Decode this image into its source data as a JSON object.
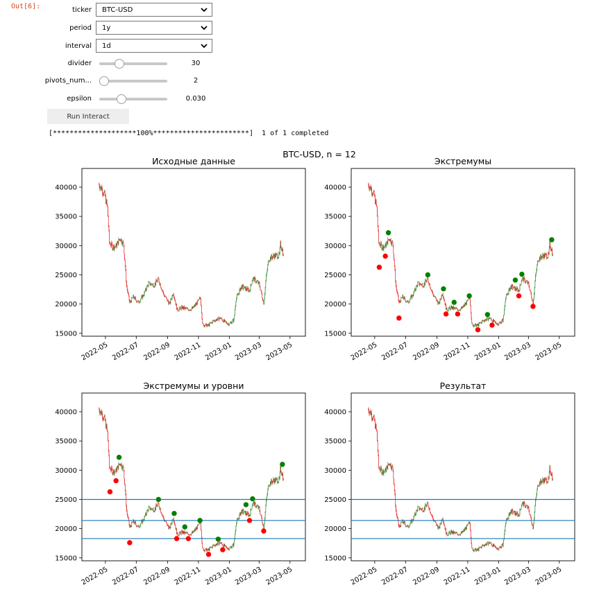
{
  "cell": {
    "prompt": "Out[6]:"
  },
  "widgets": {
    "ticker": {
      "label": "ticker",
      "value": "BTC-USD"
    },
    "period": {
      "label": "period",
      "value": "1y"
    },
    "interval": {
      "label": "interval",
      "value": "1d"
    },
    "divider": {
      "label": "divider",
      "value": "30",
      "fraction": 0.26
    },
    "pivots": {
      "label": "pivots_num...",
      "value": "2",
      "fraction": 0.0
    },
    "epsilon": {
      "label": "epsilon",
      "value": "0.030",
      "fraction": 0.29
    },
    "run_button": "Run Interact"
  },
  "progress": {
    "text": "[********************100%***********************]  1 of 1 completed"
  },
  "chart_data": {
    "type": "candlestick",
    "suptitle": "BTC-USD, n = 12",
    "x_ticks": [
      "2022-05",
      "2022-07",
      "2022-09",
      "2022-11",
      "2023-01",
      "2023-03",
      "2023-05"
    ],
    "y_ticks": [
      15000,
      20000,
      25000,
      30000,
      35000,
      40000
    ],
    "ylim": [
      14500,
      43200
    ],
    "close_path": [
      [
        "2022-04-18",
        40500
      ],
      [
        "2022-04-24",
        39700
      ],
      [
        "2022-04-30",
        38500
      ],
      [
        "2022-05-05",
        36500
      ],
      [
        "2022-05-09",
        30500
      ],
      [
        "2022-05-15",
        29800
      ],
      [
        "2022-05-22",
        29900
      ],
      [
        "2022-05-30",
        31300
      ],
      [
        "2022-06-06",
        30200
      ],
      [
        "2022-06-12",
        23000
      ],
      [
        "2022-06-18",
        20200
      ],
      [
        "2022-06-25",
        21200
      ],
      [
        "2022-07-05",
        20300
      ],
      [
        "2022-07-15",
        21500
      ],
      [
        "2022-07-25",
        23500
      ],
      [
        "2022-08-05",
        23300
      ],
      [
        "2022-08-14",
        24200
      ],
      [
        "2022-08-25",
        21500
      ],
      [
        "2022-09-05",
        20000
      ],
      [
        "2022-09-12",
        22000
      ],
      [
        "2022-09-20",
        19000
      ],
      [
        "2022-09-30",
        19400
      ],
      [
        "2022-10-10",
        19100
      ],
      [
        "2022-10-20",
        19200
      ],
      [
        "2022-11-01",
        20500
      ],
      [
        "2022-11-05",
        21200
      ],
      [
        "2022-11-09",
        16500
      ],
      [
        "2022-11-20",
        16300
      ],
      [
        "2022-11-30",
        17100
      ],
      [
        "2022-12-14",
        17600
      ],
      [
        "2022-12-25",
        16800
      ],
      [
        "2023-01-01",
        16600
      ],
      [
        "2023-01-10",
        17300
      ],
      [
        "2023-01-14",
        20800
      ],
      [
        "2023-01-25",
        23000
      ],
      [
        "2023-02-10",
        22300
      ],
      [
        "2023-02-16",
        24400
      ],
      [
        "2023-02-22",
        24000
      ],
      [
        "2023-03-01",
        23400
      ],
      [
        "2023-03-10",
        20200
      ],
      [
        "2023-03-15",
        24700
      ],
      [
        "2023-03-20",
        27700
      ],
      [
        "2023-03-31",
        28300
      ],
      [
        "2023-04-10",
        28300
      ],
      [
        "2023-04-12",
        30200
      ],
      [
        "2023-04-16",
        29300
      ],
      [
        "2023-04-18",
        28200
      ]
    ],
    "subplots": [
      {
        "title": "Исходные данные",
        "extrema": false,
        "levels": false
      },
      {
        "title": "Экстремумы",
        "extrema": true,
        "levels": false
      },
      {
        "title": "Экстремумы и уровни",
        "extrema": true,
        "levels": true
      },
      {
        "title": "Результат",
        "extrema": false,
        "levels": true
      }
    ],
    "maxima": [
      [
        "2022-05-28",
        32200
      ],
      [
        "2022-08-14",
        25000
      ],
      [
        "2022-09-14",
        22600
      ],
      [
        "2022-10-05",
        20300
      ],
      [
        "2022-11-04",
        21400
      ],
      [
        "2022-12-10",
        18200
      ],
      [
        "2023-02-03",
        24100
      ],
      [
        "2023-02-16",
        25100
      ],
      [
        "2023-04-16",
        31000
      ]
    ],
    "minima": [
      [
        "2022-05-10",
        26300
      ],
      [
        "2022-05-22",
        28200
      ],
      [
        "2022-06-18",
        17600
      ],
      [
        "2022-09-19",
        18300
      ],
      [
        "2022-10-12",
        18300
      ],
      [
        "2022-11-21",
        15600
      ],
      [
        "2022-12-19",
        16400
      ],
      [
        "2023-02-10",
        21400
      ],
      [
        "2023-03-10",
        19600
      ]
    ],
    "levels": [
      25000,
      21400,
      18300
    ],
    "colors": {
      "up": "#2e8b2e",
      "down": "#e0201c",
      "max_marker": "#008000",
      "min_marker": "#ff0000",
      "level": "#1f77b4"
    }
  }
}
